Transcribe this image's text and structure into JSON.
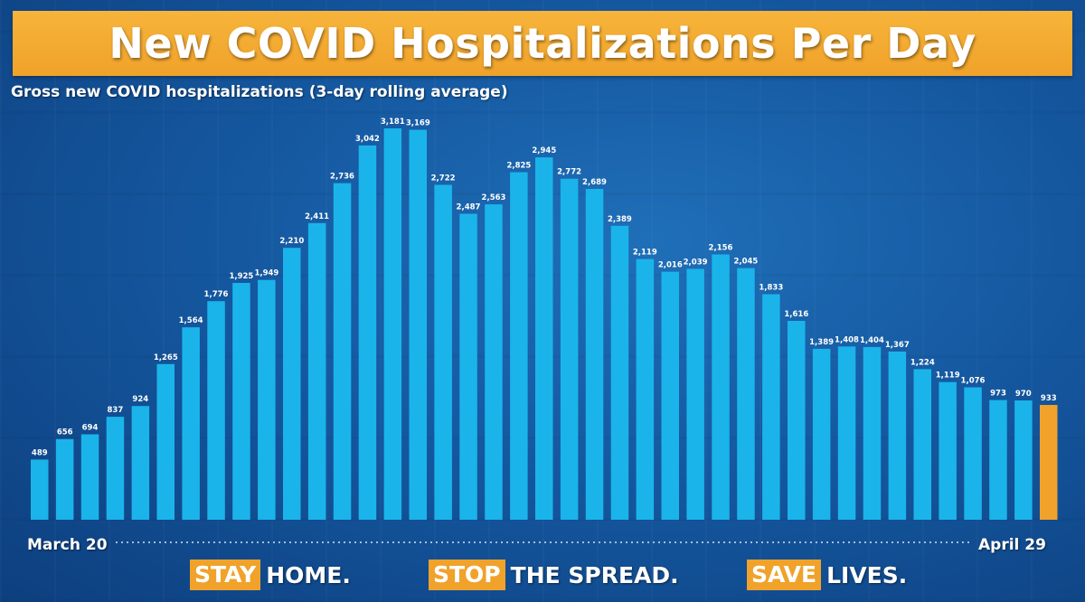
{
  "title": "New COVID Hospitalizations Per Day",
  "subtitle": "Gross new COVID hospitalizations (3-day rolling average)",
  "colors": {
    "bar": "#1ab4ea",
    "highlight": "#f0a22a",
    "banner": "#f0a22a"
  },
  "chart_data": {
    "type": "bar",
    "title": "New COVID Hospitalizations Per Day",
    "subtitle": "Gross new COVID hospitalizations (3-day rolling average)",
    "xlabel_start": "March 20",
    "xlabel_end": "April 29",
    "ylim": [
      0,
      3181
    ],
    "values": [
      489,
      656,
      694,
      837,
      924,
      1265,
      1564,
      1776,
      1925,
      1949,
      2210,
      2411,
      2736,
      3042,
      3181,
      3169,
      2722,
      2487,
      2563,
      2825,
      2945,
      2772,
      2689,
      2389,
      2119,
      2016,
      2039,
      2156,
      2045,
      1833,
      1616,
      1389,
      1408,
      1404,
      1367,
      1224,
      1119,
      1076,
      973,
      970,
      933
    ],
    "labels": [
      "489",
      "656",
      "694",
      "837",
      "924",
      "1,265",
      "1,564",
      "1,776",
      "1,925",
      "1,949",
      "2,210",
      "2,411",
      "2,736",
      "3,042",
      "3,181",
      "3,169",
      "2,722",
      "2,487",
      "2,563",
      "2,825",
      "2,945",
      "2,772",
      "2,689",
      "2,389",
      "2,119",
      "2,016",
      "2,039",
      "2,156",
      "2,045",
      "1,833",
      "1,616",
      "1,389",
      "1,408",
      "1,404",
      "1,367",
      "1,224",
      "1,119",
      "1,076",
      "973",
      "970",
      "933"
    ],
    "highlight_index": 40
  },
  "footer": {
    "slogans": [
      {
        "highlight": "STAY",
        "rest": "HOME."
      },
      {
        "highlight": "STOP",
        "rest": "THE SPREAD."
      },
      {
        "highlight": "SAVE",
        "rest": "LIVES."
      }
    ]
  }
}
